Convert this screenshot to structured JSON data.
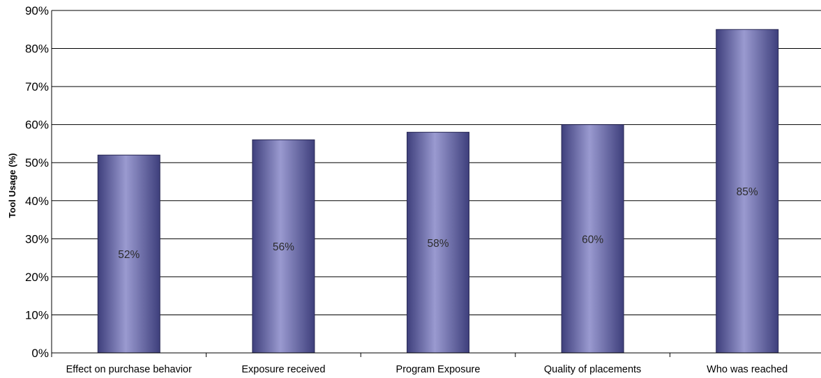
{
  "chart_data": {
    "type": "bar",
    "title": "",
    "xlabel": "",
    "ylabel": "Tool Usage (%)",
    "ylim": [
      0,
      90
    ],
    "y_tick_step": 10,
    "y_tick_suffix": "%",
    "grid": true,
    "legend": "none",
    "categories": [
      "Effect on purchase behavior",
      "Exposure received",
      "Program Exposure",
      "Quality of placements",
      "Who was reached"
    ],
    "values": [
      52,
      56,
      58,
      60,
      85
    ],
    "data_labels": [
      "52%",
      "56%",
      "58%",
      "60%",
      "85%"
    ],
    "colors": {
      "bar_edge": "#3e3f7c",
      "bar_center": "#9a9ad0",
      "gridline": "#000000",
      "axis": "#000000"
    }
  }
}
